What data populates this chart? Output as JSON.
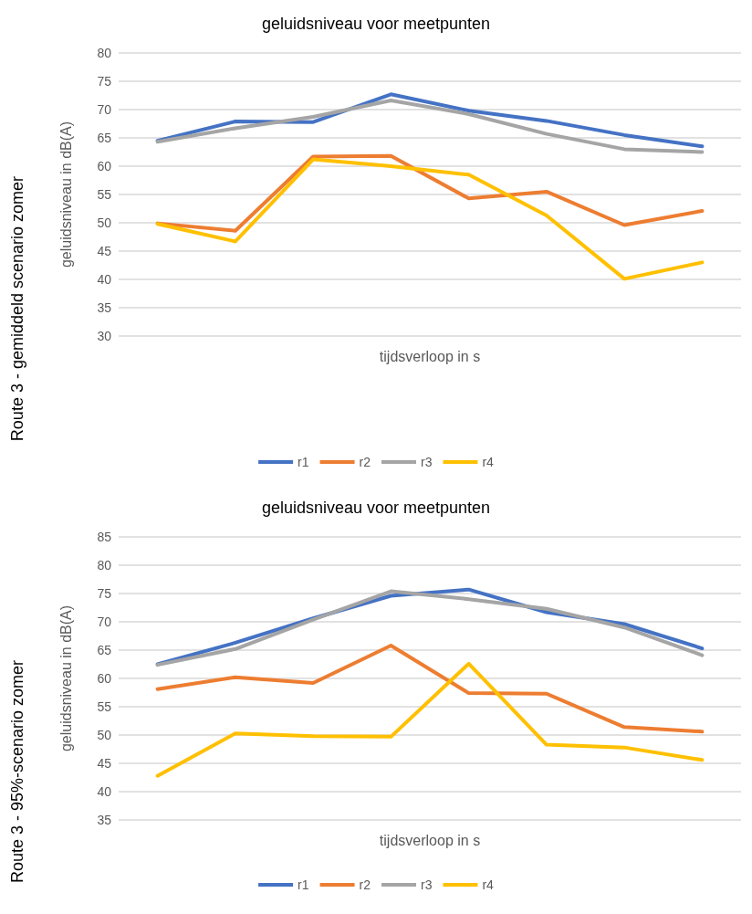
{
  "chart_data": [
    {
      "type": "line",
      "title": "geluidsniveau voor meetpunten",
      "xlabel": "tijdsverloop in s",
      "ylabel": "geluidsniveau in dB(A)",
      "annotations": [
        "Route 3 - gemiddeld scenario zomer"
      ],
      "categories": [
        null,
        null,
        null,
        null,
        null,
        null,
        null,
        null
      ],
      "ylim": [
        30,
        80
      ],
      "yticks": [
        30,
        35,
        40,
        45,
        50,
        55,
        60,
        65,
        70,
        75,
        80
      ],
      "grid": "y",
      "legend": "bottom",
      "marker": "none",
      "line_style": "solid",
      "series": [
        {
          "name": "r1",
          "color": "#4472c4",
          "values": [
            64.5,
            67.9,
            67.8,
            72.7,
            69.8,
            68.0,
            65.5,
            63.5
          ]
        },
        {
          "name": "r2",
          "color": "#ed7d31",
          "values": [
            49.9,
            48.6,
            61.7,
            61.8,
            54.3,
            55.5,
            49.6,
            52.1
          ]
        },
        {
          "name": "r3",
          "color": "#a5a5a5",
          "values": [
            64.3,
            66.7,
            68.7,
            71.6,
            69.2,
            65.7,
            63.0,
            62.5
          ]
        },
        {
          "name": "r4",
          "color": "#ffc000",
          "values": [
            49.8,
            46.7,
            61.2,
            60.0,
            58.5,
            51.3,
            40.1,
            43.0
          ]
        }
      ]
    },
    {
      "type": "line",
      "title": "geluidsniveau voor meetpunten",
      "xlabel": "tijdsverloop in s",
      "ylabel": "geluidsniveau in dB(A)",
      "annotations": [
        "Route 3 - 95%-scenario zomer"
      ],
      "categories": [
        null,
        null,
        null,
        null,
        null,
        null,
        null,
        null
      ],
      "ylim": [
        35,
        85
      ],
      "yticks": [
        35,
        40,
        45,
        50,
        55,
        60,
        65,
        70,
        75,
        80,
        85
      ],
      "grid": "y",
      "legend": "bottom",
      "marker": "none",
      "line_style": "solid",
      "series": [
        {
          "name": "r1",
          "color": "#4472c4",
          "values": [
            62.5,
            66.3,
            70.6,
            74.6,
            75.7,
            71.7,
            69.6,
            65.3
          ]
        },
        {
          "name": "r2",
          "color": "#ed7d31",
          "values": [
            58.1,
            60.2,
            59.2,
            65.8,
            57.4,
            57.3,
            51.4,
            50.6
          ]
        },
        {
          "name": "r3",
          "color": "#a5a5a5",
          "values": [
            62.4,
            65.2,
            70.4,
            75.4,
            74.0,
            72.3,
            69.0,
            64.1
          ]
        },
        {
          "name": "r4",
          "color": "#ffc000",
          "values": [
            42.8,
            50.3,
            49.8,
            49.7,
            62.6,
            48.3,
            47.8,
            45.6
          ]
        }
      ]
    }
  ]
}
